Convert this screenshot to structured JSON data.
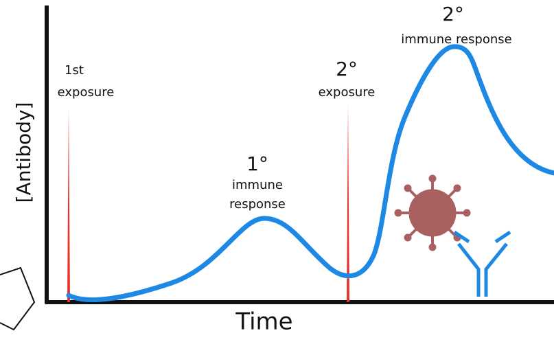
{
  "axes": {
    "y_label": "[Antibody]",
    "x_label": "Time"
  },
  "annotations": [
    {
      "lines": [
        "1st",
        "exposure"
      ]
    },
    {
      "lines": [
        "2°",
        "exposure"
      ]
    },
    {
      "lines": [
        "1°",
        "immune",
        "response"
      ]
    },
    {
      "lines": [
        "2°",
        "immune response"
      ]
    }
  ]
}
